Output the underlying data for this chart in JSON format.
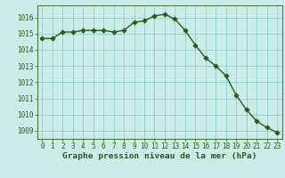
{
  "x": [
    0,
    1,
    2,
    3,
    4,
    5,
    6,
    7,
    8,
    9,
    10,
    11,
    12,
    13,
    14,
    15,
    16,
    17,
    18,
    19,
    20,
    21,
    22,
    23
  ],
  "y": [
    1014.7,
    1014.7,
    1015.1,
    1015.1,
    1015.2,
    1015.2,
    1015.2,
    1015.1,
    1015.2,
    1015.7,
    1015.8,
    1016.1,
    1016.2,
    1015.9,
    1015.2,
    1014.3,
    1013.5,
    1013.0,
    1012.4,
    1011.2,
    1010.3,
    1009.6,
    1009.2,
    1008.9
  ],
  "line_color": "#2d5a1b",
  "marker_color": "#2d5a1b",
  "bg_color": "#c8ede8",
  "grid_color": "#88c8c0",
  "xlabel": "Graphe pression niveau de la mer (hPa)",
  "xlabel_color": "#2d5a1b",
  "tick_color": "#2d5a1b",
  "ylim": [
    1008.5,
    1016.75
  ],
  "yticks": [
    1009,
    1010,
    1011,
    1012,
    1013,
    1014,
    1015,
    1016
  ],
  "xticks": [
    0,
    1,
    2,
    3,
    4,
    5,
    6,
    7,
    8,
    9,
    10,
    11,
    12,
    13,
    14,
    15,
    16,
    17,
    18,
    19,
    20,
    21,
    22,
    23
  ],
  "font_size_ticks": 5.5,
  "font_size_xlabel": 6.8,
  "line_width": 1.0,
  "marker_size": 2.8
}
